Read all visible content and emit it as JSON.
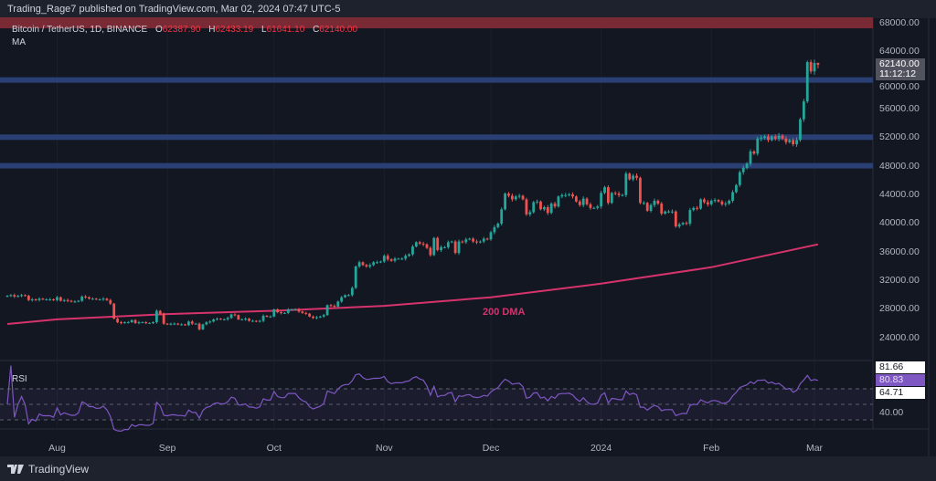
{
  "attribution": "Trading_Rage7 published on TradingView.com, Mar 02, 2024 07:47 UTC-5",
  "legend": {
    "symbol": "Bitcoin / TetherUS, 1D, BINANCE",
    "open_label": "O",
    "open": "62387.90",
    "high_label": "H",
    "high": "62433.19",
    "low_label": "L",
    "low": "61641.10",
    "close_label": "C",
    "close": "62140.00",
    "indicator": "MA"
  },
  "chart_data": {
    "type": "candlestick",
    "interval": "1D",
    "price_axis": {
      "ticks": [
        "68000.00",
        "64000.00",
        "60000.00",
        "56000.00",
        "52000.00",
        "48000.00",
        "44000.00",
        "40000.00",
        "36000.00",
        "32000.00",
        "28000.00",
        "24000.00"
      ],
      "range": [
        21000,
        69500
      ]
    },
    "time_axis": {
      "ticks": [
        "Aug",
        "Sep",
        "Oct",
        "Nov",
        "Dec",
        "2024",
        "Feb",
        "Mar"
      ]
    },
    "closes": [
      29800,
      29900,
      29700,
      29800,
      29900,
      29800,
      29200,
      29300,
      29200,
      29400,
      29300,
      29300,
      29300,
      29200,
      29600,
      29100,
      29200,
      29100,
      29000,
      29000,
      29100,
      29700,
      29600,
      29400,
      29400,
      29300,
      29300,
      29400,
      29200,
      28700,
      26600,
      26100,
      26000,
      26100,
      26100,
      26400,
      26000,
      26100,
      26100,
      26000,
      26000,
      26100,
      27700,
      27300,
      25900,
      25800,
      25900,
      25900,
      25800,
      25800,
      25700,
      26200,
      25900,
      25900,
      25100,
      25800,
      26100,
      26200,
      26500,
      26600,
      26500,
      26500,
      26700,
      27200,
      27100,
      26500,
      26500,
      26600,
      26300,
      26300,
      26200,
      26300,
      27000,
      26900,
      26900,
      27900,
      27500,
      27400,
      27400,
      27900,
      27900,
      27900,
      27600,
      27400,
      27300,
      26900,
      26700,
      26800,
      26900,
      27100,
      28500,
      28400,
      28300,
      29000,
      29600,
      29900,
      29900,
      30900,
      33900,
      34500,
      34100,
      33900,
      34100,
      34500,
      34500,
      34600,
      35400,
      34900,
      34700,
      35000,
      35000,
      35000,
      35400,
      35600,
      36700,
      37300,
      37100,
      37000,
      36500,
      35500,
      37900,
      36200,
      36600,
      36600,
      37300,
      37400,
      35800,
      37400,
      37300,
      37700,
      37800,
      37400,
      37300,
      37400,
      37800,
      37700,
      38700,
      39400,
      39900,
      41900,
      44100,
      43800,
      43300,
      43700,
      43800,
      43300,
      41200,
      41500,
      42900,
      43000,
      41900,
      42200,
      41400,
      42700,
      42300,
      43700,
      43900,
      43900,
      44000,
      43700,
      43000,
      42500,
      43400,
      42600,
      42100,
      42100,
      42300,
      44200,
      45000,
      42800,
      44200,
      44100,
      43900,
      43900,
      46900,
      46100,
      46600,
      46300,
      42800,
      42800,
      41700,
      42500,
      43100,
      42700,
      41300,
      41600,
      41600,
      41600,
      39500,
      39800,
      40000,
      39900,
      41800,
      42100,
      42000,
      43300,
      42900,
      42600,
      43100,
      43200,
      43000,
      42600,
      42700,
      43100,
      44300,
      45300,
      47100,
      47700,
      48300,
      50000,
      49700,
      51800,
      51900,
      52100,
      51600,
      52100,
      51800,
      52200,
      51800,
      51300,
      51600,
      51000,
      51600,
      54500,
      57000,
      62500,
      61200,
      62387.9,
      62140.0
    ],
    "last_candle": {
      "open": 62387.9,
      "high": 62433.19,
      "low": 61641.1,
      "close": 62140.0
    },
    "ma200": {
      "label": "200 DMA",
      "color": "#d6336c",
      "samples": [
        25850,
        26500,
        27250,
        27700,
        28400,
        29600,
        31500,
        33800,
        37000
      ]
    },
    "levels": [
      {
        "price": 68000,
        "color": "#7a2a35"
      },
      {
        "price": 60000,
        "color": "#2a3f73"
      },
      {
        "price": 52000,
        "color": "#2a3f73"
      },
      {
        "price": 48000,
        "color": "#2a3f73"
      }
    ],
    "current_price_tag": {
      "price": "62140.00",
      "countdown": "11:12:12"
    },
    "colors": {
      "up": "#26a69a",
      "down": "#ef5350",
      "background": "#131722"
    }
  },
  "rsi": {
    "title": "RSI",
    "labels": {
      "upper_value": "81.66",
      "rsi_value": "80.83",
      "rsi_ma_value": "64.71",
      "axis_40": "40.00"
    },
    "bands": [
      70,
      50,
      30
    ],
    "line_color": "#7e57c2"
  },
  "footer": {
    "brand": "TradingView"
  }
}
